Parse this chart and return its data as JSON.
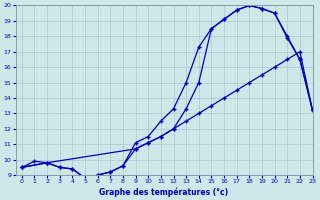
{
  "title": "Graphe des températures (°c)",
  "xlim": [
    -0.5,
    23
  ],
  "ylim": [
    9,
    20
  ],
  "xticks": [
    0,
    1,
    2,
    3,
    4,
    5,
    6,
    7,
    8,
    9,
    10,
    11,
    12,
    13,
    14,
    15,
    16,
    17,
    18,
    19,
    20,
    21,
    22,
    23
  ],
  "yticks": [
    9,
    10,
    11,
    12,
    13,
    14,
    15,
    16,
    17,
    18,
    19,
    20
  ],
  "bg_color": "#cce8e8",
  "line_color": "#0000bb",
  "grid_color": "#aabccc",
  "line1_x": [
    0,
    1,
    2,
    3,
    4,
    5,
    6,
    7,
    8,
    9,
    10,
    11,
    12,
    13,
    14,
    15,
    16,
    17,
    18,
    19,
    20,
    21,
    22,
    23
  ],
  "line1_y": [
    9.5,
    9.9,
    9.8,
    9.5,
    9.4,
    8.8,
    9.0,
    9.2,
    9.6,
    10.7,
    11.1,
    11.5,
    12.0,
    12.5,
    13.0,
    13.5,
    14.0,
    14.5,
    15.0,
    15.5,
    16.0,
    16.5,
    17.0,
    13.2
  ],
  "line2_x": [
    0,
    2,
    3,
    4,
    5,
    6,
    7,
    8,
    9,
    10,
    11,
    12,
    13,
    14,
    15,
    16,
    17,
    18,
    19,
    20,
    21,
    22,
    23
  ],
  "line2_y": [
    9.5,
    9.8,
    9.5,
    9.4,
    8.8,
    9.0,
    9.2,
    9.6,
    11.1,
    11.5,
    12.5,
    13.3,
    15.0,
    17.3,
    18.5,
    19.1,
    19.7,
    20.0,
    19.8,
    19.5,
    18.0,
    16.5,
    13.2
  ],
  "line3_x": [
    0,
    2,
    9,
    10,
    11,
    12,
    13,
    14,
    15,
    16,
    17,
    18,
    19,
    20,
    21,
    22,
    23
  ],
  "line3_y": [
    9.5,
    9.8,
    10.7,
    11.1,
    11.5,
    12.0,
    13.3,
    15.0,
    18.5,
    19.1,
    19.7,
    20.0,
    19.8,
    19.5,
    17.9,
    16.5,
    13.2
  ]
}
